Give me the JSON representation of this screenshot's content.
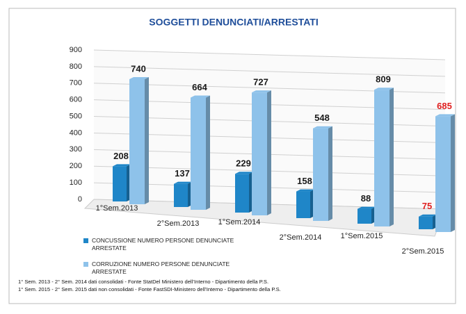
{
  "chart_data": {
    "type": "bar3d",
    "title": "SOGGETTI DENUNCIATI/ARRESTATI",
    "categories": [
      "1°Sem.2013",
      "2°Sem.2013",
      "1°Sem.2014",
      "2°Sem.2014",
      "1°Sem.2015",
      "2°Sem.2015"
    ],
    "series": [
      {
        "name": "CONCUSSIONE NUMERO PERSONE DENUNCIATE ARRESTATE",
        "color": "#1f86c8",
        "values": [
          208,
          137,
          229,
          158,
          88,
          75
        ],
        "label_colors": [
          "#1a1a1a",
          "#1a1a1a",
          "#1a1a1a",
          "#1a1a1a",
          "#1a1a1a",
          "#e02020"
        ]
      },
      {
        "name": "CORRUZIONE NUMERO PERSONE DENUNCIATE ARRESTATE",
        "color": "#8ec2ea",
        "values": [
          740,
          664,
          727,
          548,
          809,
          685
        ],
        "label_colors": [
          "#1a1a1a",
          "#1a1a1a",
          "#1a1a1a",
          "#1a1a1a",
          "#1a1a1a",
          "#e02020"
        ]
      }
    ],
    "ylim": [
      0,
      900
    ],
    "yticks": [
      0,
      100,
      200,
      300,
      400,
      500,
      600,
      700,
      800,
      900
    ],
    "grid": true,
    "notes": [
      "1° Sem. 2013 - 2° Sem. 2014 dati consolidati - Fonte StatDel Ministero dell’Interno - Dipartimento della P.S.",
      "1° Sem. 2015 - 2° Sem. 2015 dati non consolidati - Fonte FastSDI-Ministero dell’Interno - Dipartimento della P.S."
    ]
  }
}
